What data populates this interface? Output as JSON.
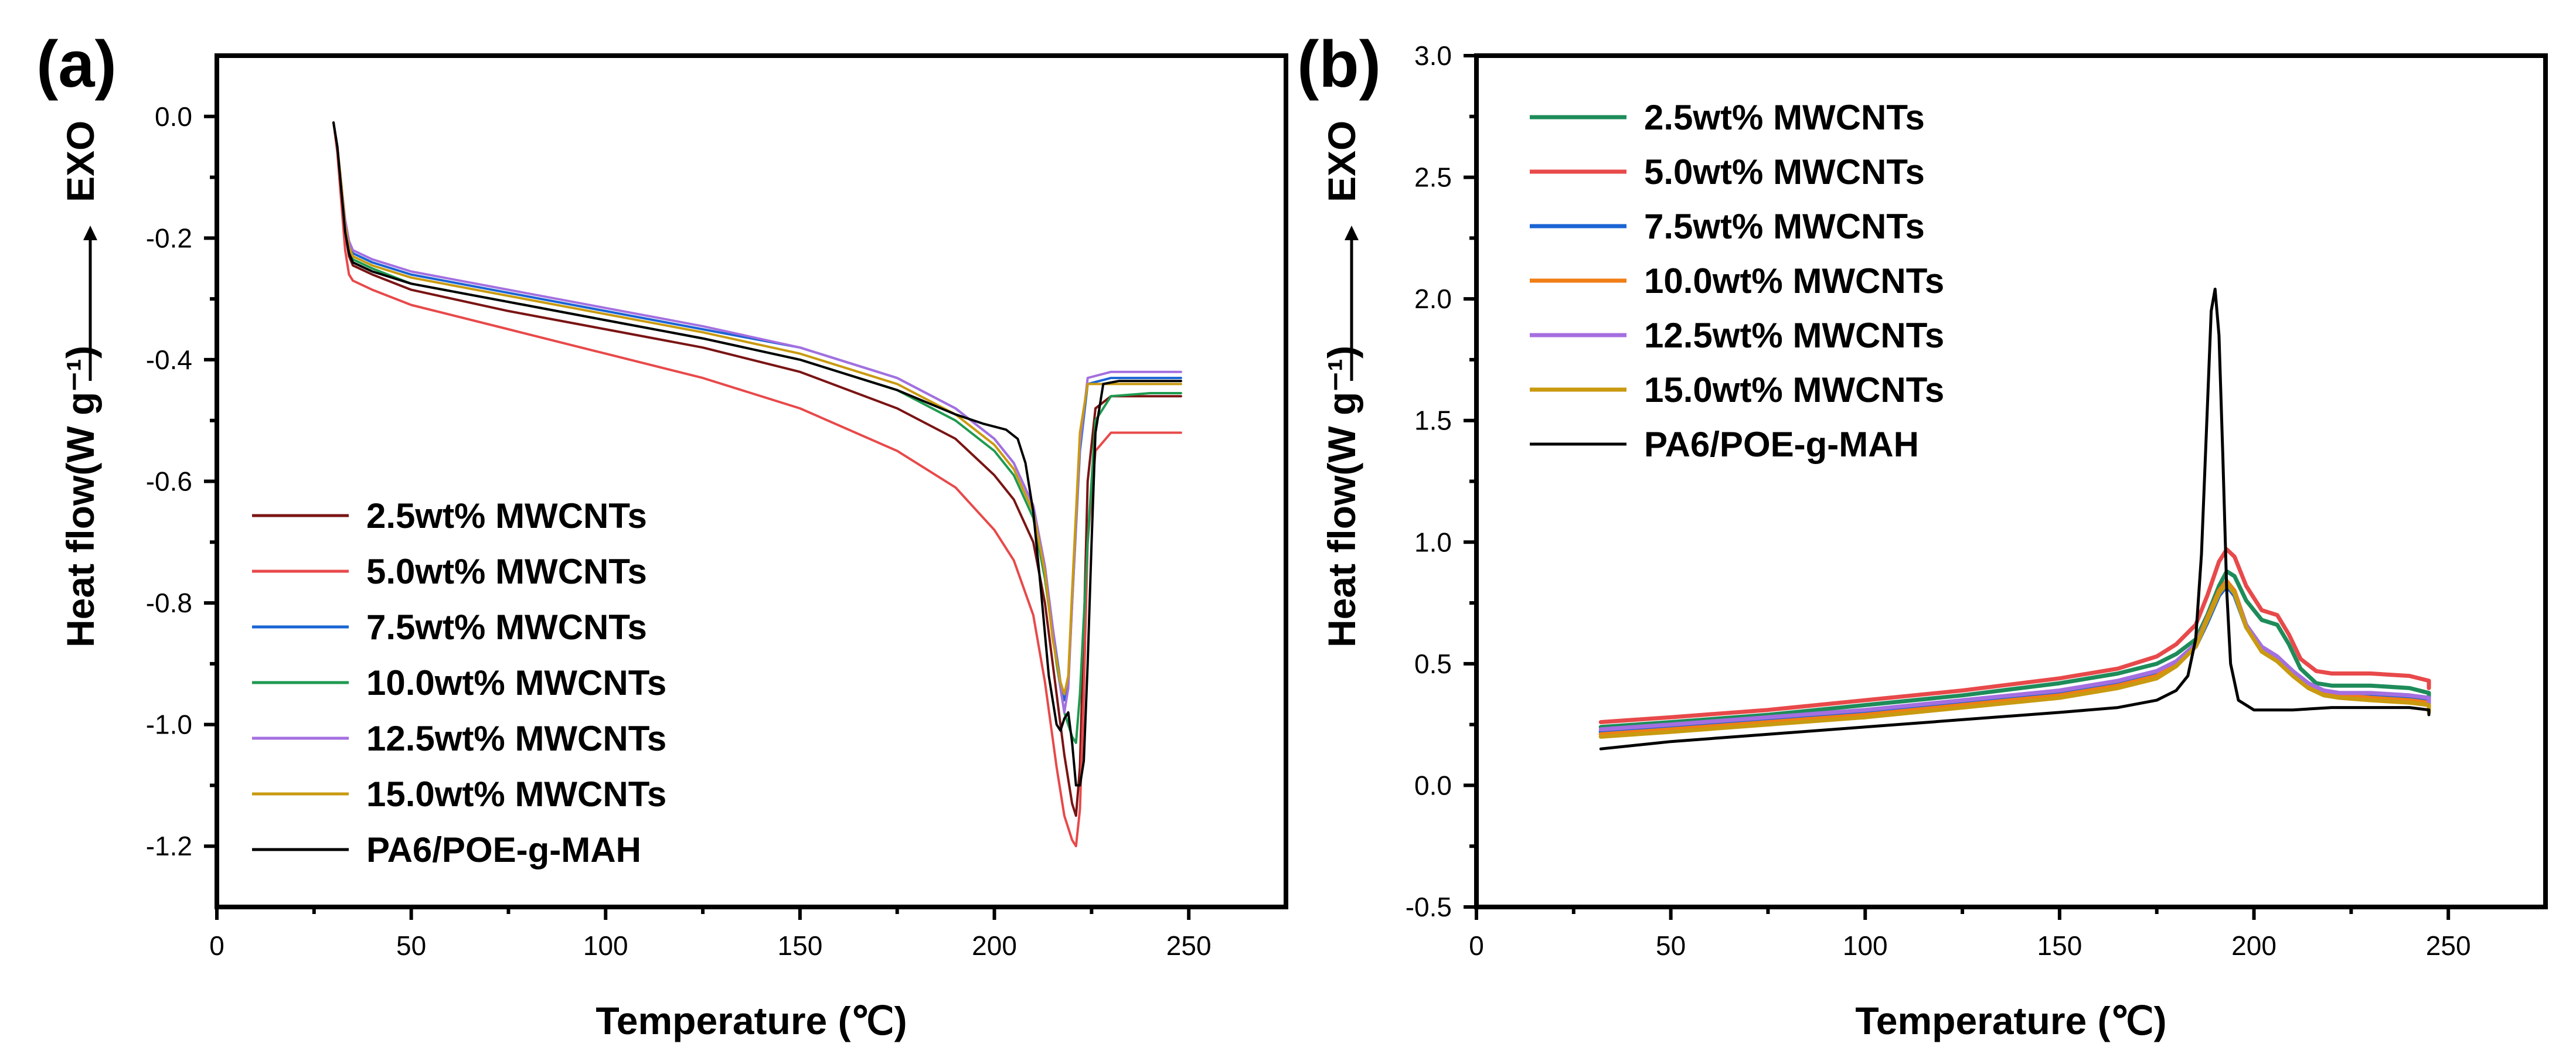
{
  "panels": [
    {
      "id": "a",
      "label": "(a)",
      "xlabel": "Temperature (℃)",
      "ylabel": "Heat flow(W g⁻¹)",
      "exo_label": "EXO",
      "xlim": [
        0,
        275
      ],
      "ylim": [
        -1.3,
        0.1
      ],
      "xticks": [
        0,
        50,
        100,
        150,
        200,
        250
      ],
      "xtick_labels": [
        "0",
        "50",
        "100",
        "150",
        "200",
        "250"
      ],
      "yticks": [
        0.0,
        -0.2,
        -0.4,
        -0.6,
        -0.8,
        -1.0,
        -1.2
      ],
      "ytick_labels": [
        "0.0",
        "-0.2",
        "-0.4",
        "-0.6",
        "-0.8",
        "-1.0",
        "-1.2"
      ],
      "legend_position": "lower-left"
    },
    {
      "id": "b",
      "label": "(b)",
      "xlabel": "Temperature (℃)",
      "ylabel": "Heat flow(W g⁻¹)",
      "exo_label": "EXO",
      "xlim": [
        0,
        275
      ],
      "ylim": [
        -0.5,
        3.0
      ],
      "xticks": [
        0,
        50,
        100,
        150,
        200,
        250
      ],
      "xtick_labels": [
        "0",
        "50",
        "100",
        "150",
        "200",
        "250"
      ],
      "yticks": [
        -0.5,
        0.0,
        0.5,
        1.0,
        1.5,
        2.0,
        2.5,
        3.0
      ],
      "ytick_labels": [
        "-0.5",
        "0.0",
        "0.5",
        "1.0",
        "1.5",
        "2.0",
        "2.5",
        "3.0"
      ],
      "legend_position": "top-left"
    }
  ],
  "chart_data": [
    {
      "type": "line",
      "panel": "a",
      "title": "",
      "xlabel": "Temperature (℃)",
      "ylabel": "Heat flow(W g⁻¹)",
      "xlim": [
        0,
        275
      ],
      "ylim": [
        -1.3,
        0.1
      ],
      "series": [
        {
          "name": "2.5wt% MWCNTs",
          "color": "#7a1414",
          "width": 4,
          "x": [
            30,
            31,
            32,
            33,
            34,
            35,
            40,
            50,
            75,
            100,
            125,
            150,
            175,
            190,
            200,
            205,
            210,
            213,
            216,
            218,
            220,
            221,
            222,
            223,
            224,
            226,
            230,
            240,
            248
          ],
          "y": [
            -0.01,
            -0.05,
            -0.12,
            -0.19,
            -0.23,
            -0.245,
            -0.26,
            -0.285,
            -0.32,
            -0.35,
            -0.38,
            -0.42,
            -0.48,
            -0.53,
            -0.59,
            -0.63,
            -0.7,
            -0.8,
            -0.95,
            -1.05,
            -1.13,
            -1.15,
            -1.07,
            -0.85,
            -0.6,
            -0.48,
            -0.46,
            -0.46,
            -0.46
          ]
        },
        {
          "name": "5.0wt% MWCNTs",
          "color": "#e8494a",
          "width": 4,
          "x": [
            30,
            31,
            32,
            33,
            34,
            35,
            40,
            50,
            75,
            100,
            125,
            150,
            175,
            190,
            200,
            205,
            210,
            213,
            216,
            218,
            220,
            221,
            222,
            223,
            224,
            226,
            230,
            240,
            248
          ],
          "y": [
            -0.01,
            -0.06,
            -0.14,
            -0.22,
            -0.26,
            -0.27,
            -0.285,
            -0.31,
            -0.35,
            -0.39,
            -0.43,
            -0.48,
            -0.55,
            -0.61,
            -0.68,
            -0.73,
            -0.82,
            -0.93,
            -1.07,
            -1.15,
            -1.19,
            -1.2,
            -1.14,
            -0.95,
            -0.7,
            -0.55,
            -0.52,
            -0.52,
            -0.52
          ]
        },
        {
          "name": "7.5wt% MWCNTs",
          "color": "#1a64d4",
          "width": 4,
          "x": [
            30,
            31,
            32,
            33,
            34,
            35,
            40,
            50,
            75,
            100,
            125,
            150,
            175,
            190,
            200,
            205,
            210,
            213,
            215,
            217,
            218,
            219,
            220,
            222,
            224,
            230,
            240,
            248
          ],
          "y": [
            -0.01,
            -0.05,
            -0.11,
            -0.18,
            -0.21,
            -0.225,
            -0.24,
            -0.26,
            -0.29,
            -0.32,
            -0.35,
            -0.38,
            -0.43,
            -0.48,
            -0.53,
            -0.57,
            -0.64,
            -0.74,
            -0.84,
            -0.93,
            -0.96,
            -0.93,
            -0.8,
            -0.55,
            -0.44,
            -0.43,
            -0.43,
            -0.43
          ]
        },
        {
          "name": "10.0wt% MWCNTs",
          "color": "#1e9a50",
          "width": 4,
          "x": [
            30,
            31,
            32,
            33,
            34,
            35,
            40,
            50,
            75,
            100,
            125,
            150,
            175,
            190,
            200,
            205,
            210,
            213,
            216,
            218,
            220,
            221,
            222,
            224,
            226,
            230,
            240,
            248
          ],
          "y": [
            -0.01,
            -0.05,
            -0.12,
            -0.19,
            -0.22,
            -0.235,
            -0.25,
            -0.275,
            -0.305,
            -0.335,
            -0.365,
            -0.4,
            -0.45,
            -0.5,
            -0.55,
            -0.59,
            -0.66,
            -0.76,
            -0.9,
            -0.98,
            -1.02,
            -1.03,
            -0.95,
            -0.7,
            -0.5,
            -0.46,
            -0.455,
            -0.455
          ]
        },
        {
          "name": "12.5wt% MWCNTs",
          "color": "#a46fe0",
          "width": 4,
          "x": [
            30,
            31,
            32,
            33,
            34,
            35,
            40,
            50,
            75,
            100,
            125,
            150,
            175,
            190,
            200,
            205,
            210,
            213,
            215,
            217,
            218,
            219,
            220,
            222,
            224,
            230,
            240,
            248
          ],
          "y": [
            -0.01,
            -0.05,
            -0.11,
            -0.17,
            -0.205,
            -0.22,
            -0.235,
            -0.255,
            -0.285,
            -0.315,
            -0.345,
            -0.38,
            -0.43,
            -0.48,
            -0.53,
            -0.57,
            -0.64,
            -0.74,
            -0.84,
            -0.94,
            -0.98,
            -0.94,
            -0.8,
            -0.54,
            -0.43,
            -0.42,
            -0.42,
            -0.42
          ]
        },
        {
          "name": "15.0wt% MWCNTs",
          "color": "#c99a10",
          "width": 4,
          "x": [
            30,
            31,
            32,
            33,
            34,
            35,
            40,
            50,
            75,
            100,
            125,
            150,
            175,
            190,
            200,
            205,
            210,
            213,
            215,
            217,
            218,
            219,
            220,
            222,
            224,
            230,
            240,
            248
          ],
          "y": [
            -0.01,
            -0.05,
            -0.11,
            -0.18,
            -0.215,
            -0.23,
            -0.245,
            -0.265,
            -0.295,
            -0.325,
            -0.355,
            -0.39,
            -0.44,
            -0.49,
            -0.54,
            -0.58,
            -0.65,
            -0.75,
            -0.86,
            -0.93,
            -0.95,
            -0.92,
            -0.78,
            -0.52,
            -0.44,
            -0.44,
            -0.44,
            -0.44
          ]
        },
        {
          "name": "PA6/POE-g-MAH",
          "color": "#000000",
          "width": 4,
          "x": [
            30,
            31,
            32,
            33,
            34,
            35,
            40,
            50,
            75,
            100,
            125,
            150,
            175,
            190,
            197,
            203,
            206,
            208,
            210,
            212,
            214,
            216,
            217,
            218,
            219,
            220,
            221,
            222,
            223,
            224,
            225,
            226,
            228,
            232,
            240,
            248
          ],
          "y": [
            -0.01,
            -0.05,
            -0.12,
            -0.19,
            -0.225,
            -0.24,
            -0.255,
            -0.275,
            -0.305,
            -0.335,
            -0.365,
            -0.4,
            -0.45,
            -0.49,
            -0.505,
            -0.515,
            -0.53,
            -0.57,
            -0.65,
            -0.78,
            -0.92,
            -1.0,
            -1.01,
            -0.99,
            -0.98,
            -1.03,
            -1.1,
            -1.1,
            -1.06,
            -0.9,
            -0.7,
            -0.52,
            -0.44,
            -0.435,
            -0.435,
            -0.435
          ]
        }
      ],
      "legend": [
        "2.5wt% MWCNTs",
        "5.0wt% MWCNTs",
        "7.5wt% MWCNTs",
        "10.0wt% MWCNTs",
        "12.5wt% MWCNTs",
        "15.0wt% MWCNTs",
        "PA6/POE-g-MAH"
      ],
      "legend_position": "lower-left"
    },
    {
      "type": "line",
      "panel": "b",
      "title": "",
      "xlabel": "Temperature (℃)",
      "ylabel": "Heat flow(W g⁻¹)",
      "xlim": [
        0,
        275
      ],
      "ylim": [
        -0.5,
        3.0
      ],
      "series": [
        {
          "name": "2.5wt% MWCNTs",
          "color": "#1e8c5a",
          "width": 7,
          "x": [
            32,
            50,
            75,
            100,
            125,
            150,
            165,
            175,
            180,
            185,
            188,
            191,
            193,
            195,
            198,
            202,
            206,
            209,
            212,
            216,
            220,
            230,
            240,
            245,
            245
          ],
          "y": [
            0.24,
            0.26,
            0.29,
            0.33,
            0.37,
            0.42,
            0.46,
            0.5,
            0.54,
            0.6,
            0.7,
            0.82,
            0.88,
            0.86,
            0.76,
            0.68,
            0.66,
            0.58,
            0.48,
            0.42,
            0.41,
            0.41,
            0.4,
            0.38,
            0.33
          ]
        },
        {
          "name": "5.0wt% MWCNTs",
          "color": "#e8494a",
          "width": 7,
          "x": [
            32,
            50,
            75,
            100,
            125,
            150,
            165,
            175,
            180,
            185,
            188,
            191,
            193,
            195,
            198,
            202,
            206,
            209,
            212,
            216,
            220,
            230,
            240,
            245,
            245
          ],
          "y": [
            0.26,
            0.28,
            0.31,
            0.35,
            0.39,
            0.44,
            0.48,
            0.53,
            0.58,
            0.66,
            0.78,
            0.92,
            0.97,
            0.94,
            0.82,
            0.72,
            0.7,
            0.62,
            0.52,
            0.47,
            0.46,
            0.46,
            0.45,
            0.43,
            0.4
          ]
        },
        {
          "name": "7.5wt% MWCNTs",
          "color": "#1a64d4",
          "width": 7,
          "x": [
            32,
            50,
            75,
            100,
            125,
            150,
            165,
            175,
            180,
            185,
            188,
            191,
            193,
            195,
            198,
            202,
            206,
            210,
            214,
            218,
            222,
            230,
            240,
            245,
            245
          ],
          "y": [
            0.22,
            0.24,
            0.27,
            0.3,
            0.34,
            0.38,
            0.42,
            0.46,
            0.5,
            0.57,
            0.67,
            0.78,
            0.82,
            0.78,
            0.65,
            0.56,
            0.52,
            0.46,
            0.41,
            0.38,
            0.37,
            0.37,
            0.36,
            0.35,
            0.32
          ]
        },
        {
          "name": "10.0wt% MWCNTs",
          "color": "#f07e16",
          "width": 7,
          "x": [
            32,
            50,
            75,
            100,
            125,
            150,
            165,
            175,
            180,
            185,
            188,
            191,
            193,
            195,
            198,
            202,
            206,
            210,
            214,
            218,
            222,
            230,
            240,
            245,
            245
          ],
          "y": [
            0.21,
            0.23,
            0.26,
            0.29,
            0.33,
            0.37,
            0.41,
            0.45,
            0.5,
            0.58,
            0.69,
            0.8,
            0.84,
            0.8,
            0.66,
            0.56,
            0.52,
            0.46,
            0.41,
            0.38,
            0.37,
            0.36,
            0.35,
            0.34,
            0.31
          ]
        },
        {
          "name": "12.5wt% MWCNTs",
          "color": "#a46fe0",
          "width": 7,
          "x": [
            32,
            50,
            75,
            100,
            125,
            150,
            165,
            175,
            180,
            185,
            188,
            191,
            193,
            195,
            198,
            202,
            206,
            210,
            214,
            218,
            222,
            230,
            240,
            245,
            245
          ],
          "y": [
            0.23,
            0.25,
            0.28,
            0.31,
            0.35,
            0.39,
            0.43,
            0.47,
            0.51,
            0.58,
            0.68,
            0.79,
            0.83,
            0.79,
            0.66,
            0.57,
            0.53,
            0.47,
            0.42,
            0.39,
            0.38,
            0.38,
            0.37,
            0.36,
            0.33
          ]
        },
        {
          "name": "15.0wt% MWCNTs",
          "color": "#c99a10",
          "width": 7,
          "x": [
            32,
            50,
            75,
            100,
            125,
            150,
            165,
            175,
            180,
            185,
            188,
            191,
            193,
            195,
            198,
            202,
            206,
            210,
            214,
            218,
            222,
            230,
            240,
            245,
            245
          ],
          "y": [
            0.2,
            0.22,
            0.25,
            0.28,
            0.32,
            0.36,
            0.4,
            0.44,
            0.49,
            0.57,
            0.68,
            0.79,
            0.83,
            0.79,
            0.65,
            0.55,
            0.51,
            0.45,
            0.4,
            0.37,
            0.36,
            0.35,
            0.34,
            0.33,
            0.3
          ]
        },
        {
          "name": "PA6/POE-g-MAH",
          "color": "#000000",
          "width": 5,
          "x": [
            32,
            50,
            75,
            100,
            125,
            150,
            165,
            175,
            180,
            183,
            185,
            186.5,
            188,
            189,
            190,
            191,
            192,
            193,
            194,
            196,
            200,
            210,
            220,
            230,
            240,
            245,
            245
          ],
          "y": [
            0.15,
            0.18,
            0.21,
            0.24,
            0.27,
            0.3,
            0.32,
            0.35,
            0.39,
            0.45,
            0.6,
            0.95,
            1.55,
            1.95,
            2.04,
            1.85,
            1.35,
            0.8,
            0.5,
            0.35,
            0.31,
            0.31,
            0.32,
            0.32,
            0.32,
            0.31,
            0.29
          ]
        }
      ],
      "legend": [
        "2.5wt% MWCNTs",
        "5.0wt% MWCNTs",
        "7.5wt% MWCNTs",
        "10.0wt% MWCNTs",
        "12.5wt% MWCNTs",
        "15.0wt% MWCNTs",
        "PA6/POE-g-MAH"
      ],
      "legend_position": "top-left"
    }
  ]
}
